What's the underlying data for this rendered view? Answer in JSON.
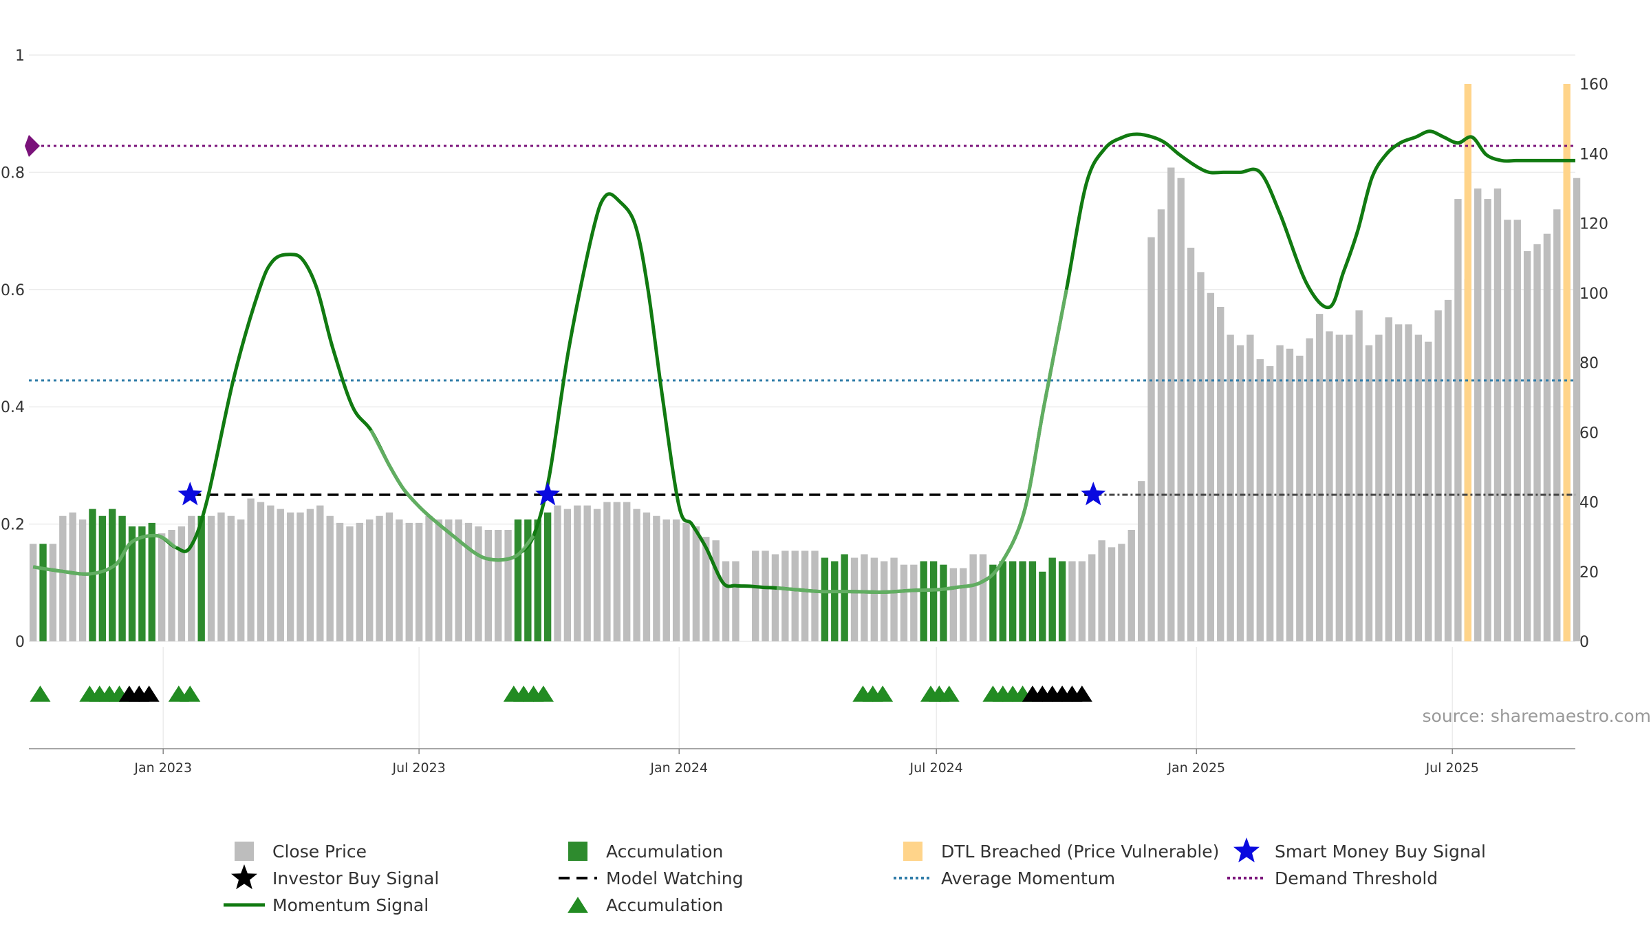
{
  "chart_data": {
    "type": "bar",
    "source": "source: sharemaestro.com",
    "colors": {
      "close": "#bdbdbd",
      "accum": "#2e8b2e",
      "dtl": "#ffd48a",
      "momentum": "#117a11",
      "accum_triangle": "#228b22",
      "investor": "#000000",
      "smart_money": "#0a0adf",
      "watching": "#000000",
      "average": "#2f7ca8",
      "demand": "#7a127a"
    },
    "x_axis": {
      "start": "2022-09-28",
      "end": "2025-09-26",
      "ticks": [
        {
          "date": "2023-01-01",
          "label": "Jan 2023"
        },
        {
          "date": "2023-07-01",
          "label": "Jul 2023"
        },
        {
          "date": "2024-01-01",
          "label": "Jan 2024"
        },
        {
          "date": "2024-07-01",
          "label": "Jul 2024"
        },
        {
          "date": "2025-01-01",
          "label": "Jan 2025"
        },
        {
          "date": "2025-07-01",
          "label": "Jul 2025"
        }
      ]
    },
    "y_left": {
      "range": [
        0,
        1
      ],
      "ticks": [
        {
          "value": 0,
          "label": "0"
        },
        {
          "value": 0.2,
          "label": "0.2"
        },
        {
          "value": 0.4,
          "label": "0.4"
        },
        {
          "value": 0.6,
          "label": "0.6"
        },
        {
          "value": 0.8,
          "label": "0.8"
        },
        {
          "value": 1,
          "label": "1"
        }
      ]
    },
    "y_right": {
      "range": [
        0,
        160
      ],
      "ticks": [
        {
          "value": 0,
          "label": "0"
        },
        {
          "value": 20,
          "label": "20"
        },
        {
          "value": 40,
          "label": "40"
        },
        {
          "value": 60,
          "label": "60"
        },
        {
          "value": 80,
          "label": "80"
        },
        {
          "value": 100,
          "label": "100"
        },
        {
          "value": 120,
          "label": "120"
        },
        {
          "value": 140,
          "label": "140"
        },
        {
          "value": 160,
          "label": "160"
        }
      ]
    },
    "bars_start": "2022-10-01",
    "bar_step_days": 7,
    "close_prices": [
      28,
      28,
      28,
      36,
      37,
      35,
      38,
      36,
      38,
      36,
      33,
      33,
      34,
      31,
      32,
      33,
      36,
      36,
      36,
      37,
      36,
      35,
      41,
      40,
      39,
      38,
      37,
      37,
      38,
      39,
      36,
      34,
      33,
      34,
      35,
      36,
      37,
      35,
      34,
      34,
      36,
      35,
      35,
      35,
      34,
      33,
      32,
      32,
      32,
      35,
      35,
      35,
      37,
      39,
      38,
      39,
      39,
      38,
      40,
      40,
      40,
      38,
      37,
      36,
      35,
      35,
      34,
      33,
      30,
      29,
      23,
      23,
      0,
      26,
      26,
      25,
      26,
      26,
      26,
      26,
      24,
      23,
      25,
      24,
      25,
      24,
      23,
      24,
      22,
      22,
      23,
      23,
      22,
      21,
      21,
      25,
      25,
      22,
      23,
      23,
      23,
      23,
      20,
      24,
      23,
      23,
      23,
      25,
      29,
      27,
      28,
      32,
      46,
      116,
      124,
      136,
      133,
      113,
      106,
      100,
      96,
      88,
      85,
      88,
      81,
      79,
      85,
      84,
      82,
      87,
      94,
      89,
      88,
      88,
      95,
      85,
      88,
      93,
      91,
      91,
      88,
      86,
      95,
      98,
      127,
      104,
      130,
      127,
      130,
      121,
      121,
      112,
      114,
      117,
      124,
      124,
      133
    ],
    "accum_bars": [
      1,
      6,
      7,
      8,
      9,
      10,
      11,
      12,
      17,
      49,
      50,
      51,
      52,
      80,
      81,
      82,
      90,
      91,
      92,
      97,
      98,
      99,
      100,
      101,
      102,
      103,
      104
    ],
    "dtl_bars": [
      145,
      155
    ],
    "dtl_value": 160,
    "momentum": {
      "dates": [
        "2022-10-01",
        "2022-10-20",
        "2022-11-10",
        "2022-11-28",
        "2022-12-10",
        "2022-12-28",
        "2023-01-10",
        "2023-01-20",
        "2023-02-01",
        "2023-02-20",
        "2023-03-10",
        "2023-03-20",
        "2023-04-01",
        "2023-04-10",
        "2023-04-20",
        "2023-05-01",
        "2023-05-15",
        "2023-05-28",
        "2023-06-10",
        "2023-06-20",
        "2023-07-01",
        "2023-07-10",
        "2023-07-25",
        "2023-08-10",
        "2023-08-20",
        "2023-09-01",
        "2023-09-10",
        "2023-09-20",
        "2023-10-01",
        "2023-10-15",
        "2023-11-01",
        "2023-11-10",
        "2023-11-20",
        "2023-12-01",
        "2023-12-10",
        "2023-12-20",
        "2024-01-01",
        "2024-01-10",
        "2024-01-20",
        "2024-02-01",
        "2024-02-10",
        "2024-02-20",
        "2024-03-01",
        "2024-03-10",
        "2024-03-25",
        "2024-04-10",
        "2024-05-01",
        "2024-05-25",
        "2024-06-15",
        "2024-07-01",
        "2024-07-15",
        "2024-08-01",
        "2024-08-15",
        "2024-09-01",
        "2024-09-15",
        "2024-10-01",
        "2024-10-15",
        "2024-10-28",
        "2024-11-10",
        "2024-11-20",
        "2024-12-01",
        "2024-12-10",
        "2024-12-20",
        "2025-01-01",
        "2025-01-10",
        "2025-01-20",
        "2025-02-01",
        "2025-02-15",
        "2025-03-01",
        "2025-03-20",
        "2025-04-05",
        "2025-04-15",
        "2025-04-25",
        "2025-05-05",
        "2025-05-15",
        "2025-05-25",
        "2025-06-05",
        "2025-06-15",
        "2025-06-25",
        "2025-07-05",
        "2025-07-15",
        "2025-07-25",
        "2025-08-05",
        "2025-08-15",
        "2025-08-25",
        "2025-09-01",
        "2025-09-10",
        "2025-09-20",
        "2025-09-26"
      ],
      "values": [
        0.127,
        0.12,
        0.115,
        0.13,
        0.17,
        0.18,
        0.16,
        0.16,
        0.24,
        0.45,
        0.6,
        0.65,
        0.66,
        0.65,
        0.6,
        0.5,
        0.4,
        0.36,
        0.3,
        0.26,
        0.23,
        0.21,
        0.18,
        0.15,
        0.14,
        0.14,
        0.15,
        0.18,
        0.28,
        0.5,
        0.7,
        0.76,
        0.75,
        0.71,
        0.6,
        0.42,
        0.23,
        0.2,
        0.16,
        0.1,
        0.095,
        0.094,
        0.092,
        0.091,
        0.088,
        0.085,
        0.085,
        0.084,
        0.087,
        0.088,
        0.092,
        0.1,
        0.13,
        0.22,
        0.4,
        0.6,
        0.78,
        0.84,
        0.86,
        0.865,
        0.86,
        0.85,
        0.83,
        0.81,
        0.8,
        0.8,
        0.8,
        0.8,
        0.73,
        0.61,
        0.57,
        0.63,
        0.7,
        0.79,
        0.83,
        0.85,
        0.86,
        0.87,
        0.86,
        0.85,
        0.86,
        0.83,
        0.82,
        0.82,
        0.82,
        0.82,
        0.82,
        0.82,
        0.82
      ]
    },
    "momentum_faded": [
      [
        "2022-10-01",
        "2023-01-14"
      ],
      [
        "2023-05-20",
        "2023-09-30"
      ],
      [
        "2024-03-05",
        "2024-10-10"
      ]
    ],
    "demand_threshold": 0.845,
    "average_momentum": 0.445,
    "model_watching": {
      "value": 0.25,
      "start": "2023-01-20",
      "end": "2025-09-26",
      "dashed_until": "2024-10-22"
    },
    "smart_money_buy_signals": [
      {
        "date": "2023-01-20",
        "value": 0.25
      },
      {
        "date": "2023-09-30",
        "value": 0.25
      },
      {
        "date": "2024-10-20",
        "value": 0.25
      }
    ],
    "accumulation_markers": [
      "2022-10-06",
      "2022-11-10",
      "2022-11-17",
      "2022-11-24",
      "2022-12-01",
      "2023-01-12",
      "2023-01-20",
      "2023-09-06",
      "2023-09-13",
      "2023-09-20",
      "2023-09-27",
      "2024-05-10",
      "2024-05-17",
      "2024-05-24",
      "2024-06-27",
      "2024-07-03",
      "2024-07-10",
      "2024-08-10",
      "2024-08-17",
      "2024-08-24",
      "2024-08-31"
    ],
    "investor_buy_markers": [
      "2022-12-08",
      "2022-12-15",
      "2022-12-22",
      "2024-09-07",
      "2024-09-14",
      "2024-09-21",
      "2024-09-28",
      "2024-10-05",
      "2024-10-12"
    ],
    "legend": [
      {
        "label": "Close Price",
        "symbol": "square",
        "color_key": "close"
      },
      {
        "label": "Accumulation",
        "symbol": "square",
        "color_key": "accum"
      },
      {
        "label": "DTL Breached (Price Vulnerable)",
        "symbol": "square",
        "color_key": "dtl"
      },
      {
        "label": "Smart Money Buy Signal",
        "symbol": "star",
        "color_key": "smart_money"
      },
      {
        "label": "Investor Buy Signal",
        "symbol": "star",
        "color_key": "investor"
      },
      {
        "label": "Model Watching",
        "symbol": "dash",
        "color_key": "watching"
      },
      {
        "label": "Average Momentum",
        "symbol": "dot",
        "color_key": "average"
      },
      {
        "label": "Demand Threshold",
        "symbol": "dot",
        "color_key": "demand"
      },
      {
        "label": "Momentum Signal",
        "symbol": "line",
        "color_key": "momentum"
      },
      {
        "label": "Accumulation",
        "symbol": "triangle",
        "color_key": "accum_triangle"
      }
    ]
  }
}
